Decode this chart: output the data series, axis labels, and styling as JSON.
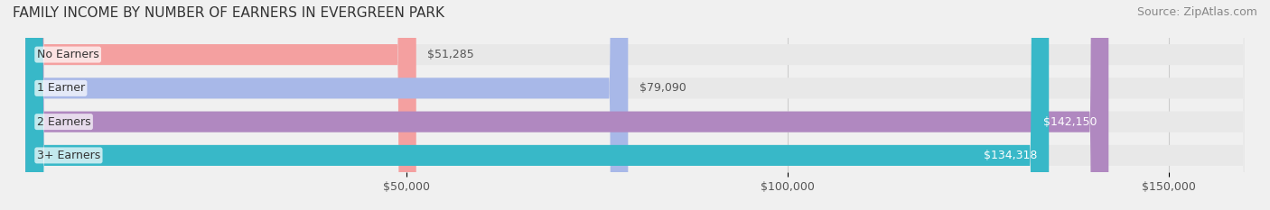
{
  "title": "FAMILY INCOME BY NUMBER OF EARNERS IN EVERGREEN PARK",
  "source": "Source: ZipAtlas.com",
  "categories": [
    "No Earners",
    "1 Earner",
    "2 Earners",
    "3+ Earners"
  ],
  "values": [
    51285,
    79090,
    142150,
    134318
  ],
  "bar_colors": [
    "#f4a0a0",
    "#a8b8e8",
    "#b088c0",
    "#38b8c8"
  ],
  "bar_edge_colors": [
    "#e07070",
    "#8898c8",
    "#9068a8",
    "#18989a"
  ],
  "label_colors": [
    "#555555",
    "#555555",
    "#ffffff",
    "#ffffff"
  ],
  "value_labels": [
    "$51,285",
    "$79,090",
    "$142,150",
    "$134,318"
  ],
  "xlim": [
    0,
    160000
  ],
  "xticks": [
    50000,
    100000,
    150000
  ],
  "xtick_labels": [
    "$50,000",
    "$100,000",
    "$150,000"
  ],
  "background_color": "#f0f0f0",
  "bar_background_color": "#e8e8e8",
  "bar_height": 0.62,
  "title_fontsize": 11,
  "source_fontsize": 9,
  "label_fontsize": 9,
  "value_fontsize": 9,
  "tick_fontsize": 9
}
